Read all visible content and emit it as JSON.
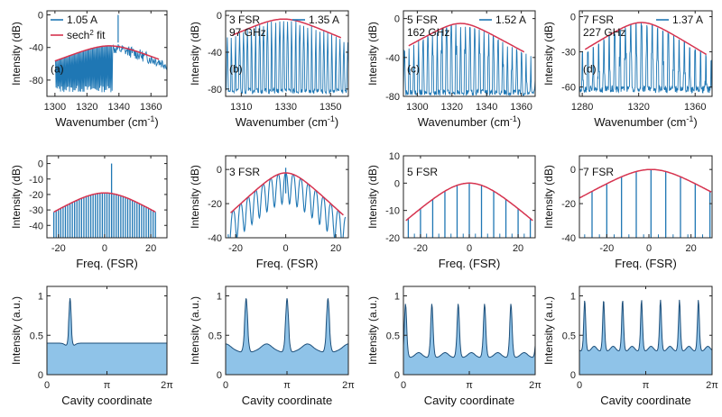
{
  "figure": {
    "width": 800,
    "height": 463
  },
  "colors": {
    "spectrum": "#1f77b4",
    "fit": "#d6334f",
    "fill": "#8fc3e8",
    "axis": "#222222"
  },
  "chart_data": [
    {
      "id": "a-top",
      "type": "line",
      "row": 0,
      "col": 0,
      "xlim": [
        1295,
        1370
      ],
      "ylim": [
        -100,
        5
      ],
      "xticks": [
        1300,
        1320,
        1340,
        1360
      ],
      "xtick_labels": [
        "1300",
        "1320",
        "1340",
        "1360"
      ],
      "yticks": [
        -80,
        -40,
        0
      ],
      "ytick_labels": [
        "-80",
        "-40",
        "0"
      ],
      "xlabel": "Wavenumber (cm",
      "xlabel_sup": "-1",
      "xlabel_tail": ")",
      "ylabel": "Intensity (dB)",
      "panel_label": "(a)",
      "fsr_label": "",
      "ghz_label": "",
      "legend": {
        "current": "1.05 A",
        "fit": "sech",
        "fit_sup": "2",
        "fit_tail": " fit"
      },
      "spectrum": {
        "kind": "dense-comb",
        "center": 1334,
        "peak": -38,
        "edge": -95,
        "x_start": 1300,
        "x_end": 1370,
        "spike_x": 1339.5,
        "spike_y": 0
      },
      "fit": {
        "center": 1334,
        "peak": -38,
        "width": 12,
        "x_start": 1300,
        "x_end": 1365
      }
    },
    {
      "id": "b-top",
      "type": "line",
      "row": 0,
      "col": 1,
      "xlim": [
        1303,
        1358
      ],
      "ylim": [
        -88,
        5
      ],
      "xticks": [
        1310,
        1330,
        1350
      ],
      "xtick_labels": [
        "1310",
        "1330",
        "1350"
      ],
      "yticks": [
        -80,
        -40,
        0
      ],
      "ytick_labels": [
        "-80",
        "-40",
        "0"
      ],
      "xlabel": "Wavenumber (cm",
      "xlabel_sup": "-1",
      "xlabel_tail": ")",
      "ylabel": "Intensity (dB)",
      "panel_label": "(b)",
      "fsr_label": "3 FSR",
      "ghz_label": "97 GHz",
      "legend": {
        "current": "1.35 A"
      },
      "spectrum": {
        "kind": "sparse-comb",
        "center": 1329,
        "peak": -4,
        "edge": -85,
        "spacing": 1.8,
        "x_start": 1303,
        "x_end": 1358,
        "noise": -82
      },
      "fit": {
        "center": 1329,
        "peak": -4,
        "width": 8.5,
        "x_start": 1306,
        "x_end": 1355
      }
    },
    {
      "id": "c-top",
      "type": "line",
      "row": 0,
      "col": 2,
      "xlim": [
        1292,
        1368
      ],
      "ylim": [
        -80,
        8
      ],
      "xticks": [
        1300,
        1320,
        1340,
        1360
      ],
      "xtick_labels": [
        "1300",
        "1320",
        "1340",
        "1360"
      ],
      "yticks": [
        -80,
        -40,
        0
      ],
      "ytick_labels": [
        "-80",
        "-40",
        "0"
      ],
      "xlabel": "Wavenumber (cm",
      "xlabel_sup": "-1",
      "xlabel_tail": ")",
      "ylabel": "Intensity (dB)",
      "panel_label": "(c)",
      "fsr_label": "5 FSR",
      "ghz_label": "162 GHz",
      "legend": {
        "current": "1.52 A"
      },
      "spectrum": {
        "kind": "sparse-comb",
        "center": 1325,
        "peak": -5,
        "edge": -78,
        "spacing": 2.7,
        "x_start": 1292,
        "x_end": 1368,
        "noise": -76
      },
      "fit": {
        "center": 1325,
        "peak": -5,
        "width": 9,
        "x_start": 1295,
        "x_end": 1362
      }
    },
    {
      "id": "d-top",
      "type": "line",
      "row": 0,
      "col": 3,
      "xlim": [
        1278,
        1372
      ],
      "ylim": [
        -68,
        5
      ],
      "xticks": [
        1280,
        1320,
        1360
      ],
      "xtick_labels": [
        "1280",
        "1320",
        "1360"
      ],
      "yticks": [
        -60,
        -30,
        0
      ],
      "ytick_labels": [
        "-60",
        "-30",
        "0"
      ],
      "xlabel": "Wavenumber (cm",
      "xlabel_sup": "-1",
      "xlabel_tail": ")",
      "ylabel": "Intensity (dB)",
      "panel_label": "(d)",
      "fsr_label": "7 FSR",
      "ghz_label": "227 GHz",
      "legend": {
        "current": "1.37 A"
      },
      "spectrum": {
        "kind": "sparse-comb",
        "center": 1322,
        "peak": -5,
        "edge": -66,
        "spacing": 3.8,
        "x_start": 1278,
        "x_end": 1372,
        "noise": -62
      },
      "fit": {
        "center": 1322,
        "peak": -5,
        "width": 12,
        "x_start": 1282,
        "x_end": 1368
      }
    },
    {
      "id": "a-mid",
      "type": "bar",
      "row": 1,
      "col": 0,
      "xlim": [
        -25,
        27
      ],
      "ylim": [
        -48,
        5
      ],
      "xticks": [
        -20,
        0,
        20
      ],
      "xtick_labels": [
        "-20",
        "0",
        "20"
      ],
      "yticks": [
        -40,
        -30,
        -20,
        -10,
        0
      ],
      "ytick_labels": [
        "-40",
        "-30",
        "-20",
        "-10",
        "0"
      ],
      "xlabel": "Freq. (FSR)",
      "ylabel": "Intensity (dB)",
      "fsr_label": "",
      "bars": {
        "start": -22,
        "end": 22,
        "step": 1,
        "center": 0,
        "peak": -19,
        "width": 10.5,
        "spike_x": 3,
        "spike_y": 0,
        "base": -48
      },
      "fit": {
        "center": 0,
        "peak": -19,
        "width": 10.5,
        "x_start": -22,
        "x_end": 22
      }
    },
    {
      "id": "b-mid",
      "type": "line",
      "row": 1,
      "col": 1,
      "xlim": [
        -24,
        25
      ],
      "ylim": [
        -40,
        8
      ],
      "xticks": [
        -20,
        0,
        20
      ],
      "xtick_labels": [
        "-20",
        "0",
        "20"
      ],
      "yticks": [
        -40,
        -20,
        0
      ],
      "ytick_labels": [
        "-40",
        "-20",
        "0"
      ],
      "xlabel": "Freq. (FSR)",
      "ylabel": "Intensity (dB)",
      "fsr_label": "3 FSR",
      "spectrum": {
        "kind": "model-comb",
        "center": 0,
        "peak": -2,
        "edge": -38,
        "spacing": 3,
        "floor_gap": 12,
        "x_start": -23,
        "x_end": 24
      },
      "fit": {
        "center": 0,
        "peak": -2,
        "width": 6.5,
        "x_start": -22,
        "x_end": 23
      }
    },
    {
      "id": "c-mid",
      "type": "bar",
      "row": 1,
      "col": 2,
      "xlim": [
        -27,
        27
      ],
      "ylim": [
        -20,
        10
      ],
      "xticks": [
        -20,
        0,
        20
      ],
      "xtick_labels": [
        "-20",
        "0",
        "20"
      ],
      "yticks": [
        -20,
        -10,
        0,
        10
      ],
      "ytick_labels": [
        "-20",
        "-10",
        "0",
        "10"
      ],
      "xlabel": "Freq. (FSR)",
      "ylabel": "Intensity (dB)",
      "fsr_label": "5 FSR",
      "bars": {
        "start": -25,
        "end": 25,
        "step": 5,
        "center": 0,
        "peak": 0,
        "width": 11.5,
        "base": -20,
        "stub": 1.5
      },
      "fit": {
        "center": 0,
        "peak": 0,
        "width": 11.5,
        "x_start": -26,
        "x_end": 26
      }
    },
    {
      "id": "d-mid",
      "type": "bar",
      "row": 1,
      "col": 3,
      "xlim": [
        -33,
        30
      ],
      "ylim": [
        -40,
        8
      ],
      "xticks": [
        -20,
        0,
        20
      ],
      "xtick_labels": [
        "-20",
        "0",
        "20"
      ],
      "yticks": [
        -40,
        -20,
        0
      ],
      "ytick_labels": [
        "-40",
        "-20",
        "0"
      ],
      "xlabel": "Freq. (FSR)",
      "ylabel": "Intensity (dB)",
      "fsr_label": "7 FSR",
      "bars": {
        "start": -34,
        "end": 36,
        "step": 7,
        "center": 1,
        "peak": 0,
        "width": 13,
        "base": -40,
        "stub": 2
      },
      "fit": {
        "center": 1,
        "peak": 0,
        "width": 13,
        "x_start": -33,
        "x_end": 30
      }
    },
    {
      "id": "a-bot",
      "type": "area",
      "row": 2,
      "col": 0,
      "xlim": [
        0,
        6.2832
      ],
      "ylim": [
        0,
        1.12
      ],
      "xticks": [
        0,
        3.1416,
        6.2832
      ],
      "xtick_labels": [
        "0",
        "π",
        "2π"
      ],
      "yticks": [
        0,
        0.5,
        1
      ],
      "ytick_labels": [
        "0",
        "0.5",
        "1"
      ],
      "xlabel": "Cavity coordinate",
      "ylabel": "Intensity (a.u.)",
      "pulse": {
        "n": 1,
        "phase": 1.21,
        "base": 0.4,
        "height": 0.97,
        "width": 0.08,
        "dip": 0.08,
        "ripple": 0
      }
    },
    {
      "id": "b-bot",
      "type": "area",
      "row": 2,
      "col": 1,
      "xlim": [
        0,
        6.2832
      ],
      "ylim": [
        0,
        1.12
      ],
      "xticks": [
        0,
        3.1416,
        6.2832
      ],
      "xtick_labels": [
        "0",
        "π",
        "2π"
      ],
      "yticks": [
        0,
        0.5,
        1
      ],
      "ytick_labels": [
        "0",
        "0.5",
        "1"
      ],
      "xlabel": "Cavity coordinate",
      "ylabel": "Intensity (a.u.)",
      "pulse": {
        "n": 3,
        "phase": 1.05,
        "base": 0.3,
        "height": 0.97,
        "width": 0.1,
        "dip": 0.05,
        "ripple": 0.09
      }
    },
    {
      "id": "c-bot",
      "type": "area",
      "row": 2,
      "col": 2,
      "xlim": [
        0,
        6.2832
      ],
      "ylim": [
        0,
        1.12
      ],
      "xticks": [
        0,
        3.1416,
        6.2832
      ],
      "xtick_labels": [
        "0",
        "π",
        "2π"
      ],
      "yticks": [
        0,
        0.5,
        1
      ],
      "ytick_labels": [
        "0",
        "0.5",
        "1"
      ],
      "xlabel": "Cavity coordinate",
      "ylabel": "Intensity (a.u.)",
      "pulse": {
        "n": 5,
        "phase": 0.1,
        "base": 0.22,
        "height": 0.9,
        "width": 0.075,
        "dip": 0.02,
        "ripple": 0.06
      }
    },
    {
      "id": "d-bot",
      "type": "area",
      "row": 2,
      "col": 3,
      "xlim": [
        0,
        6.2832
      ],
      "ylim": [
        0,
        1.12
      ],
      "xticks": [
        0,
        3.1416,
        6.2832
      ],
      "xtick_labels": [
        "0",
        "π",
        "2π"
      ],
      "yticks": [
        0,
        0.5,
        1
      ],
      "ytick_labels": [
        "0",
        "0.5",
        "1"
      ],
      "xlabel": "Cavity coordinate",
      "ylabel": "Intensity (a.u.)",
      "pulse": {
        "n": 7,
        "phase": 0.25,
        "base": 0.3,
        "height": 0.95,
        "width": 0.06,
        "dip": 0.02,
        "ripple": 0.06
      }
    }
  ]
}
